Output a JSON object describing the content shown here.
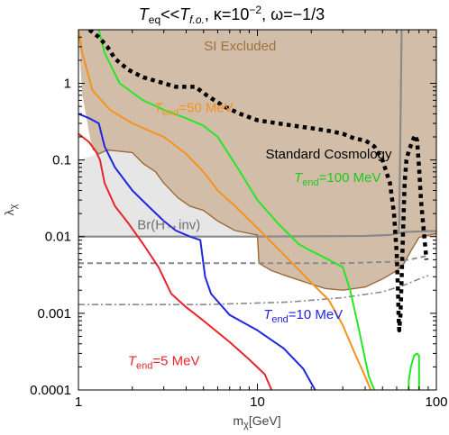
{
  "chart_data": {
    "type": "line",
    "title": "T_eq<<T_f.o., κ=10^-2, ω=-1/3",
    "title_parts": {
      "T_main": "T",
      "eq_sub": "eq",
      "lt": "<<",
      "fo_sub": "f.o.",
      "kappa": ", κ=10",
      "kappa_exp": "−2",
      "omega": ", ω=−1/3"
    },
    "xlabel": "m_χ[GeV]",
    "xlabel_parts": {
      "m": "m",
      "chi": "χ",
      "unit": "[GeV]"
    },
    "ylabel": "λ_χ",
    "ylabel_parts": {
      "lambda": "λ",
      "chi": "χ"
    },
    "x_scale": "log",
    "y_scale": "log",
    "xlim": [
      1,
      100
    ],
    "ylim": [
      0.0001,
      5
    ],
    "x_ticks": [
      {
        "value": 1,
        "label": "1"
      },
      {
        "value": 10,
        "label": "10"
      },
      {
        "value": 100,
        "label": "100"
      }
    ],
    "y_ticks": [
      {
        "value": 1,
        "label": "1"
      },
      {
        "value": 0.1,
        "label": "0.1"
      },
      {
        "value": 0.01,
        "label": "0.01"
      },
      {
        "value": 0.001,
        "label": "0.001"
      },
      {
        "value": 0.0001,
        "label": "0.0001"
      }
    ],
    "regions": [
      {
        "name": "SI Excluded",
        "label": "SI Excluded",
        "color": "#d2bea8",
        "points": [
          [
            1,
            5
          ],
          [
            1.05,
            0.7
          ],
          [
            1.1,
            0.4
          ],
          [
            1.15,
            0.22
          ],
          [
            1.2,
            0.14
          ],
          [
            1.3,
            0.12
          ],
          [
            1.45,
            0.135
          ],
          [
            1.7,
            0.13
          ],
          [
            2,
            0.125
          ],
          [
            2.3,
            0.09
          ],
          [
            2.7,
            0.07
          ],
          [
            3,
            0.05
          ],
          [
            3.6,
            0.032
          ],
          [
            4.2,
            0.025
          ],
          [
            5,
            0.022
          ],
          [
            6,
            0.016
          ],
          [
            7.5,
            0.012
          ],
          [
            9,
            0.011
          ],
          [
            10,
            0.0105
          ],
          [
            10.2,
            0.0045
          ],
          [
            12,
            0.0036
          ],
          [
            15,
            0.003
          ],
          [
            19,
            0.0025
          ],
          [
            24,
            0.0021
          ],
          [
            30,
            0.002
          ],
          [
            40,
            0.0022
          ],
          [
            50,
            0.0028
          ],
          [
            60,
            0.0036
          ],
          [
            66,
            0.0045
          ],
          [
            72,
            0.0065
          ],
          [
            80,
            0.0098
          ],
          [
            100,
            0.011
          ],
          [
            100,
            5
          ]
        ]
      },
      {
        "name": "Br(H→inv)",
        "label": "Br(H→inv)",
        "color": "#e6e6e6",
        "points": [
          [
            1,
            0.1
          ],
          [
            1.3,
            0.12
          ],
          [
            1.45,
            0.135
          ],
          [
            1.7,
            0.13
          ],
          [
            2,
            0.125
          ],
          [
            2.3,
            0.09
          ],
          [
            2.7,
            0.07
          ],
          [
            3,
            0.05
          ],
          [
            3.6,
            0.032
          ],
          [
            4.2,
            0.025
          ],
          [
            5,
            0.022
          ],
          [
            6,
            0.016
          ],
          [
            7.5,
            0.012
          ],
          [
            9,
            0.011
          ],
          [
            10,
            0.0105
          ],
          [
            10,
            0.01
          ],
          [
            1,
            0.01
          ]
        ]
      },
      {
        "name": "right-exclusion",
        "color": "#d2bea8",
        "points": [
          [
            62,
            0.015
          ],
          [
            64,
            5
          ],
          [
            100,
            5
          ],
          [
            100,
            0.01
          ],
          [
            80,
            0.0098
          ],
          [
            72,
            0.0065
          ],
          [
            66,
            0.0045
          ]
        ]
      }
    ],
    "lines": [
      {
        "name": "Br(H→inv) boundary",
        "color": "#8a8a8a",
        "width": 2.2,
        "dash": "",
        "points": [
          [
            1,
            0.01
          ],
          [
            10,
            0.01
          ],
          [
            40,
            0.0102
          ],
          [
            55,
            0.0105
          ],
          [
            66,
            0.0115
          ],
          [
            90,
            0.0118
          ],
          [
            100,
            0.0118
          ]
        ]
      },
      {
        "name": "SI right edge",
        "color": "#8a8a8a",
        "width": 2.2,
        "dash": "",
        "points": [
          [
            64,
            5
          ],
          [
            63,
            0.3
          ],
          [
            62,
            0.015
          ],
          [
            61.5,
            0.0115
          ]
        ]
      },
      {
        "name": "SI excluded boundary",
        "color": "#9a6a3a",
        "width": 1.4,
        "dash": "",
        "points": [
          [
            1.2,
            0.14
          ],
          [
            1.3,
            0.12
          ],
          [
            1.45,
            0.135
          ],
          [
            1.7,
            0.13
          ],
          [
            2,
            0.125
          ],
          [
            2.3,
            0.09
          ],
          [
            2.7,
            0.07
          ],
          [
            3,
            0.05
          ],
          [
            3.6,
            0.032
          ],
          [
            4.2,
            0.025
          ],
          [
            5,
            0.022
          ],
          [
            6,
            0.016
          ],
          [
            7.5,
            0.012
          ],
          [
            9,
            0.011
          ],
          [
            10,
            0.0105
          ],
          [
            10.2,
            0.0045
          ],
          [
            12,
            0.0036
          ],
          [
            15,
            0.003
          ],
          [
            19,
            0.0025
          ],
          [
            24,
            0.0021
          ],
          [
            30,
            0.002
          ],
          [
            40,
            0.0022
          ],
          [
            50,
            0.0028
          ],
          [
            60,
            0.0036
          ],
          [
            66,
            0.0045
          ],
          [
            72,
            0.0065
          ],
          [
            80,
            0.0098
          ],
          [
            100,
            0.011
          ]
        ]
      },
      {
        "name": "dashed gray",
        "color": "#8a8a8a",
        "width": 2,
        "dash": "6,4",
        "points": [
          [
            1,
            0.0045
          ],
          [
            10,
            0.0045
          ],
          [
            30,
            0.0045
          ],
          [
            55,
            0.0047
          ],
          [
            70,
            0.005
          ],
          [
            85,
            0.0055
          ],
          [
            90,
            0.0056
          ]
        ]
      },
      {
        "name": "dash-dot gray",
        "color": "#8a8a8a",
        "width": 1.6,
        "dash": "7,3,2,3",
        "points": [
          [
            1,
            0.0013
          ],
          [
            5,
            0.0013
          ],
          [
            15,
            0.0014
          ],
          [
            30,
            0.0016
          ],
          [
            50,
            0.0019
          ],
          [
            65,
            0.0023
          ],
          [
            80,
            0.0028
          ],
          [
            90,
            0.0031
          ]
        ]
      },
      {
        "name": "T_end=5 MeV",
        "color": "#e8242a",
        "width": 2,
        "dash": "",
        "points": [
          [
            1,
            0.22
          ],
          [
            1.15,
            0.17
          ],
          [
            1.25,
            0.13
          ],
          [
            1.32,
            0.1
          ],
          [
            1.4,
            0.05
          ],
          [
            1.6,
            0.025
          ],
          [
            1.9,
            0.015
          ],
          [
            2.3,
            0.008
          ],
          [
            2.8,
            0.004
          ],
          [
            3.3,
            0.0018
          ],
          [
            4,
            0.0012
          ],
          [
            5,
            0.0008
          ],
          [
            7,
            0.00042
          ],
          [
            9,
            0.00025
          ],
          [
            11,
            0.00016
          ],
          [
            12,
            0.0001
          ]
        ]
      },
      {
        "name": "T_end=10 MeV",
        "color": "#1f26e0",
        "width": 2,
        "dash": "",
        "points": [
          [
            1,
            0.4
          ],
          [
            1.15,
            0.35
          ],
          [
            1.3,
            0.3
          ],
          [
            1.4,
            0.15
          ],
          [
            1.6,
            0.08
          ],
          [
            2,
            0.04
          ],
          [
            2.5,
            0.024
          ],
          [
            3,
            0.016
          ],
          [
            3.5,
            0.012
          ],
          [
            4.2,
            0.01
          ],
          [
            4.8,
            0.009
          ],
          [
            5.1,
            0.003
          ],
          [
            5.5,
            0.0018
          ],
          [
            7,
            0.00095
          ],
          [
            10,
            0.0006
          ],
          [
            14,
            0.00035
          ],
          [
            18,
            0.00019
          ],
          [
            21,
            0.0001
          ]
        ]
      },
      {
        "name": "T_end=50 MeV",
        "color": "#f5921e",
        "width": 2,
        "dash": "",
        "points": [
          [
            1,
            5
          ],
          [
            1.05,
            2.5
          ],
          [
            1.2,
            0.8
          ],
          [
            1.5,
            0.45
          ],
          [
            2,
            0.3
          ],
          [
            3,
            0.2
          ],
          [
            4,
            0.12
          ],
          [
            5,
            0.07
          ],
          [
            6,
            0.04
          ],
          [
            7.5,
            0.025
          ],
          [
            10,
            0.013
          ],
          [
            15,
            0.005
          ],
          [
            20,
            0.0025
          ],
          [
            25,
            0.0015
          ],
          [
            30,
            0.0007
          ],
          [
            35,
            0.0003
          ],
          [
            40,
            0.00015
          ],
          [
            43,
            0.0001
          ]
        ]
      },
      {
        "name": "T_end=100 MeV",
        "color": "#27e527",
        "width": 2,
        "dash": "",
        "points": [
          [
            1.3,
            5
          ],
          [
            1.4,
            2.5
          ],
          [
            1.7,
            1
          ],
          [
            2.3,
            0.6
          ],
          [
            3,
            0.45
          ],
          [
            4,
            0.35
          ],
          [
            5,
            0.28
          ],
          [
            6,
            0.2
          ],
          [
            8,
            0.07
          ],
          [
            10,
            0.03
          ],
          [
            13,
            0.015
          ],
          [
            17,
            0.008
          ],
          [
            20,
            0.0065
          ],
          [
            25,
            0.005
          ],
          [
            30,
            0.004
          ],
          [
            33,
            0.002
          ],
          [
            37,
            0.0006
          ],
          [
            40,
            0.00025
          ],
          [
            42,
            0.00015
          ],
          [
            45,
            0.0001
          ]
        ]
      },
      {
        "name": "T_end=100 MeV right",
        "color": "#27e527",
        "width": 2,
        "dash": "",
        "points": [
          [
            70,
            0.0001
          ],
          [
            70,
            0.00013
          ],
          [
            72,
            0.0002
          ],
          [
            75,
            0.00028
          ],
          [
            78,
            0.0003
          ],
          [
            80,
            0.00028
          ],
          [
            80,
            0.0001
          ]
        ]
      },
      {
        "name": "Standard Cosmology",
        "color": "#000000",
        "width": 4.5,
        "dash": "4.5,4.5",
        "points": [
          [
            1.15,
            5
          ],
          [
            1.3,
            4
          ],
          [
            1.45,
            3
          ],
          [
            1.6,
            2.1
          ],
          [
            1.9,
            1.5
          ],
          [
            2.3,
            1.2
          ],
          [
            2.8,
            1.05
          ],
          [
            3.5,
            0.9
          ],
          [
            4.5,
            0.9
          ],
          [
            5.2,
            0.7
          ],
          [
            6.5,
            0.5
          ],
          [
            8,
            0.4
          ],
          [
            10,
            0.33
          ],
          [
            13,
            0.3
          ],
          [
            16,
            0.28
          ],
          [
            20,
            0.26
          ],
          [
            25,
            0.24
          ],
          [
            30,
            0.22
          ],
          [
            35,
            0.19
          ],
          [
            40,
            0.18
          ],
          [
            45,
            0.15
          ],
          [
            50,
            0.1
          ],
          [
            55,
            0.05
          ],
          [
            58,
            0.02
          ],
          [
            60,
            0.006
          ],
          [
            61,
            0.002
          ],
          [
            61.5,
            0.0009
          ],
          [
            62,
            0.0006
          ],
          [
            63,
            0.00095
          ],
          [
            64,
            0.003
          ],
          [
            65,
            0.01
          ],
          [
            66.5,
            0.05
          ],
          [
            68,
            0.1
          ],
          [
            70,
            0.13
          ],
          [
            73,
            0.17
          ],
          [
            76,
            0.21
          ],
          [
            78,
            0.18
          ],
          [
            80,
            0.08
          ],
          [
            82,
            0.03
          ],
          [
            85,
            0.012
          ],
          [
            88,
            0.005
          ]
        ]
      }
    ],
    "annotations": [
      {
        "name": "si-excluded-label",
        "text": "SI Excluded",
        "x": 8,
        "y": 2.7,
        "color": "#a07040",
        "anchor": "middle"
      },
      {
        "name": "br-hinv-label",
        "text": "Br(H→inv)",
        "x": 3.2,
        "y": 0.0125,
        "color": "#6e6e6e",
        "anchor": "middle"
      },
      {
        "name": "standard-cosmology-label",
        "text": "Standard Cosmology",
        "x": 25,
        "y": 0.105,
        "color": "#000000",
        "anchor": "middle"
      },
      {
        "name": "tend-50-label",
        "main": "T",
        "sub": "end",
        "rest": "=50 MeV",
        "x": 4.4,
        "y": 0.42,
        "color": "#f5921e",
        "anchor": "middle"
      },
      {
        "name": "tend-100-label",
        "main": "T",
        "sub": "end",
        "rest": "=100 MeV",
        "x": 28,
        "y": 0.052,
        "color": "#1ec81e",
        "anchor": "middle"
      },
      {
        "name": "tend-10-label",
        "main": "T",
        "sub": "end",
        "rest": "=10 MeV",
        "x": 18,
        "y": 0.00085,
        "color": "#1f26e0",
        "anchor": "middle"
      },
      {
        "name": "tend-5-label",
        "main": "T",
        "sub": "end",
        "rest": "=5 MeV",
        "x": 3.0,
        "y": 0.00021,
        "color": "#e8242a",
        "anchor": "middle"
      }
    ]
  }
}
